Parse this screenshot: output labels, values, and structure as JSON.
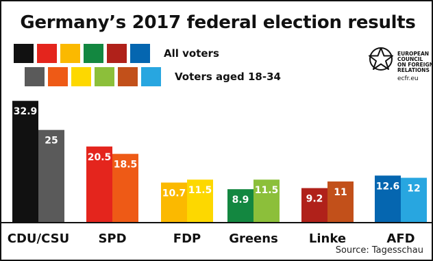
{
  "title": "Germany’s 2017 federal election results",
  "legend": {
    "all_voters_label": "All voters",
    "young_voters_label": "Voters aged 18-34",
    "all_voters_swatches": [
      "#111111",
      "#e4251d",
      "#fbb900",
      "#138740",
      "#b0211a",
      "#0566b0"
    ],
    "young_voters_swatches": [
      "#5a5a5a",
      "#ee5a16",
      "#fdd800",
      "#8cbf3a",
      "#c2501a",
      "#28a6e0"
    ]
  },
  "logo": {
    "line1": "EUROPEAN",
    "line2": "COUNCIL",
    "line3": "ON FOREIGN",
    "line4": "RELATIONS",
    "url": "ecfr.eu"
  },
  "source": "Source: Tagesschau",
  "chart_data": {
    "type": "bar",
    "title": "Germany’s 2017 federal election results",
    "categories": [
      "CDU/CSU",
      "SPD",
      "FDP",
      "Greens",
      "Linke",
      "AFD"
    ],
    "series": [
      {
        "name": "All voters",
        "values": [
          32.9,
          20.5,
          10.7,
          8.9,
          9.2,
          12.6
        ],
        "colors": [
          "#111111",
          "#e4251d",
          "#fbb900",
          "#138740",
          "#b0211a",
          "#0566b0"
        ]
      },
      {
        "name": "Voters aged 18-34",
        "values": [
          25,
          18.5,
          11.5,
          11.5,
          11,
          12
        ],
        "colors": [
          "#5a5a5a",
          "#ee5a16",
          "#fdd800",
          "#8cbf3a",
          "#c2501a",
          "#28a6e0"
        ]
      }
    ],
    "data_labels": [
      [
        "32.9",
        "20.5",
        "10.7",
        "8.9",
        "9.2",
        "12.6"
      ],
      [
        "25",
        "18.5",
        "11.5",
        "11.5",
        "11",
        "12"
      ]
    ],
    "ylim": [
      0,
      33.5
    ],
    "grid": false,
    "legend_position": "top-left",
    "xlabel": "",
    "ylabel": ""
  }
}
